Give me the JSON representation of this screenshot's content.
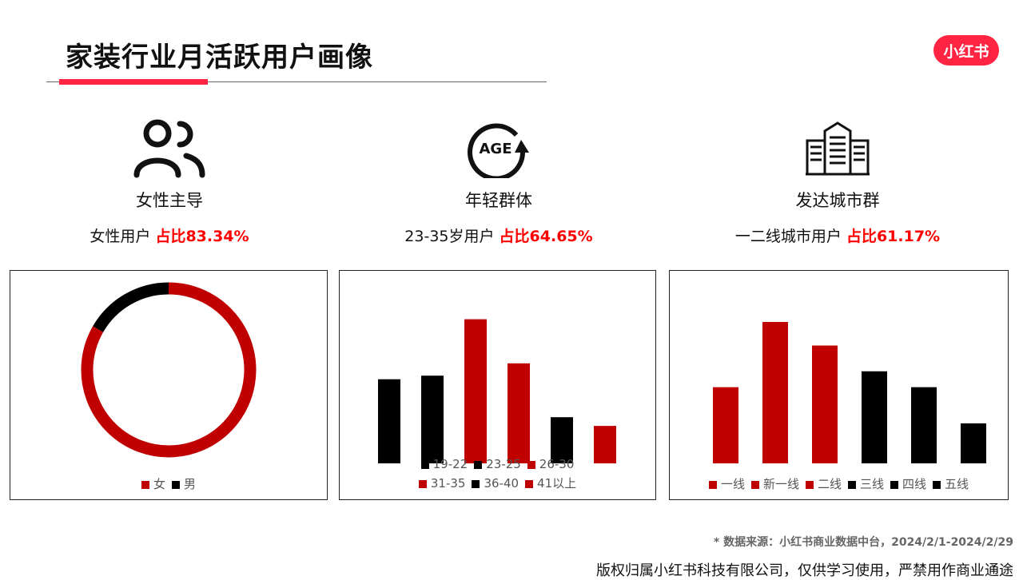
{
  "header": {
    "title": "家装行业月活跃用户画像",
    "logo": "小红书",
    "accent": "#ff2442"
  },
  "columns": [
    {
      "icon": "users-icon",
      "heading": "女性主导",
      "sub_prefix": "女性用户 ",
      "sub_highlight": "占比83.34%"
    },
    {
      "icon": "age-icon",
      "heading": "年轻群体",
      "sub_prefix": "23-35岁用户 ",
      "sub_highlight": "占比64.65%"
    },
    {
      "icon": "buildings-icon",
      "heading": "发达城市群",
      "sub_prefix": "一二线城市用户 ",
      "sub_highlight": "占比61.17%"
    }
  ],
  "chart_data": [
    {
      "type": "pie",
      "variant": "donut",
      "categories": [
        "女",
        "男"
      ],
      "values": [
        83.34,
        16.66
      ],
      "colors": [
        "#c00000",
        "#000000"
      ],
      "legend": "bottom"
    },
    {
      "type": "bar",
      "categories": [
        "19-22",
        "23-25",
        "26-30",
        "31-35",
        "36-40",
        "41以上"
      ],
      "values": [
        16.4,
        17.1,
        28.1,
        19.5,
        9.0,
        7.3
      ],
      "colors": [
        "#000000",
        "#000000",
        "#c00000",
        "#c00000",
        "#000000",
        "#c00000"
      ],
      "legend": "bottom",
      "grid": false,
      "axes": false
    },
    {
      "type": "bar",
      "categories": [
        "一线",
        "新一线",
        "二线",
        "三线",
        "四线",
        "五线"
      ],
      "values": [
        13.9,
        25.8,
        21.5,
        16.8,
        13.9,
        7.3
      ],
      "colors": [
        "#c00000",
        "#c00000",
        "#c00000",
        "#000000",
        "#000000",
        "#000000"
      ],
      "legend": "bottom",
      "grid": false,
      "axes": false
    }
  ],
  "footer": {
    "source": "* 数据来源：小红书商业数据中台，2024/2/1-2024/2/29",
    "copyright": "版权归属小红书科技有限公司，仅供学习使用，严禁用作商业通途"
  }
}
